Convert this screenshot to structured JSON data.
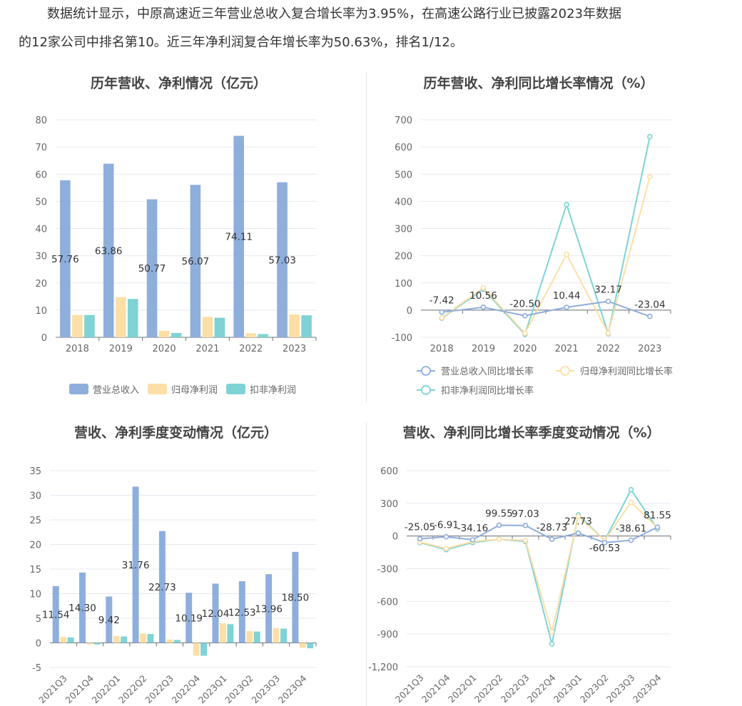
{
  "intro": {
    "line1": "数据统计显示，中原高速近三年营业总收入复合增长率为3.95%，在高速公路行业已披露2023年数据",
    "line2": "的12家公司中排名第10。近三年净利润复合年增长率为50.63%，排名1/12。"
  },
  "colors": {
    "revenue": "#8eaedc",
    "netprofit": "#fcdfa6",
    "deducted": "#7fd3d4",
    "grid": "#e6e9f0",
    "axis": "#6e7079",
    "text": "#666666"
  },
  "chart_data": [
    {
      "id": "annual",
      "type": "bar",
      "title": "历年营收、净利情况（亿元）",
      "categories": [
        "2018",
        "2019",
        "2020",
        "2021",
        "2022",
        "2023"
      ],
      "ylim": [
        0,
        80
      ],
      "yticks": [
        "0",
        "10",
        "20",
        "30",
        "40",
        "50",
        "60",
        "70",
        "80"
      ],
      "series": [
        {
          "name": "营业总收入",
          "values": [
            57.76,
            63.86,
            50.77,
            56.07,
            74.11,
            57.03
          ],
          "labels": [
            "57.76",
            "63.86",
            "50.77",
            "56.07",
            "74.11",
            "57.03"
          ]
        },
        {
          "name": "归母净利润",
          "values": [
            8.2,
            14.8,
            2.4,
            7.5,
            1.5,
            8.4
          ]
        },
        {
          "name": "扣非净利润",
          "values": [
            8.2,
            14.1,
            1.6,
            7.2,
            1.2,
            8.1
          ]
        }
      ],
      "legend": [
        "营业总收入",
        "归母净利润",
        "扣非净利润"
      ]
    },
    {
      "id": "annual_growth",
      "type": "line",
      "title": "历年营收、净利同比增长率情况（%）",
      "categories": [
        "2018",
        "2019",
        "2020",
        "2021",
        "2022",
        "2023"
      ],
      "ylim": [
        -100,
        700
      ],
      "yticks": [
        "-100",
        "0",
        "100",
        "200",
        "300",
        "400",
        "500",
        "600",
        "700"
      ],
      "series": [
        {
          "name": "营业总收入同比增长率",
          "values": [
            -7.42,
            10.56,
            -20.5,
            10.44,
            32.17,
            -23.04
          ],
          "labels": [
            "-7.42",
            "10.56",
            "-20.50",
            "10.44",
            "32.17",
            "-23.04"
          ]
        },
        {
          "name": "归母净利润同比增长率",
          "values": [
            -28,
            82,
            -85,
            205,
            -85,
            490
          ]
        },
        {
          "name": "扣非净利润同比增长率",
          "values": [
            -30,
            77,
            -89,
            388,
            -87,
            638
          ]
        }
      ],
      "legend": [
        "营业总收入同比增长率",
        "归母净利润同比增长率",
        "扣非净利润同比增长率"
      ]
    },
    {
      "id": "quarterly",
      "type": "bar",
      "title": "营收、净利季度变动情况（亿元）",
      "categories": [
        "2021Q3",
        "2021Q4",
        "2022Q1",
        "2022Q2",
        "2022Q3",
        "2022Q4",
        "2023Q1",
        "2023Q2",
        "2023Q3",
        "2023Q4"
      ],
      "ylim": [
        -5,
        35
      ],
      "yticks": [
        "-5",
        "0",
        "5",
        "10",
        "15",
        "20",
        "25",
        "30",
        "35"
      ],
      "series": [
        {
          "name": "营业总收入",
          "values": [
            11.54,
            14.3,
            9.42,
            31.76,
            22.73,
            10.19,
            12.04,
            12.53,
            13.96,
            18.5
          ],
          "labels": [
            "11.54",
            "14.30",
            "9.42",
            "31.76",
            "22.73",
            "10.19",
            "12.04",
            "12.53",
            "13.96",
            "18.50"
          ]
        },
        {
          "name": "归母净利润",
          "values": [
            1.2,
            -0.3,
            1.4,
            1.9,
            0.7,
            -2.6,
            4.0,
            2.4,
            3.0,
            -1.0
          ]
        },
        {
          "name": "扣非净利润",
          "values": [
            1.1,
            -0.3,
            1.3,
            1.8,
            0.6,
            -2.6,
            3.8,
            2.3,
            2.9,
            -1.1
          ]
        }
      ]
    },
    {
      "id": "quarterly_growth",
      "type": "line",
      "title": "营收、净利同比增长率季度变动情况（%）",
      "categories": [
        "2021Q3",
        "2021Q4",
        "2022Q1",
        "2022Q2",
        "2022Q3",
        "2022Q4",
        "2023Q1",
        "2023Q2",
        "2023Q3",
        "2023Q4"
      ],
      "ylim": [
        -1200,
        600
      ],
      "yticks": [
        "-1,200",
        "-900",
        "-600",
        "-300",
        "0",
        "300",
        "600"
      ],
      "series": [
        {
          "name": "营业总收入同比增长率",
          "values": [
            -25.05,
            -6.91,
            -34.16,
            99.55,
            97.03,
            -28.73,
            27.73,
            -60.53,
            -38.61,
            81.55
          ],
          "labels": [
            "-25.05",
            "-6.91",
            "-34.16",
            "99.55",
            "97.03",
            "-28.73",
            "27.73",
            "-60.53",
            "-38.61",
            "81.55"
          ]
        },
        {
          "name": "归母净利润同比增长率",
          "values": [
            -55,
            -115,
            -50,
            -30,
            -40,
            -880,
            180,
            -40,
            310,
            75
          ]
        },
        {
          "name": "扣非净利润同比增长率",
          "values": [
            -60,
            -125,
            -60,
            -30,
            -50,
            -990,
            195,
            -40,
            425,
            65
          ]
        }
      ]
    }
  ]
}
